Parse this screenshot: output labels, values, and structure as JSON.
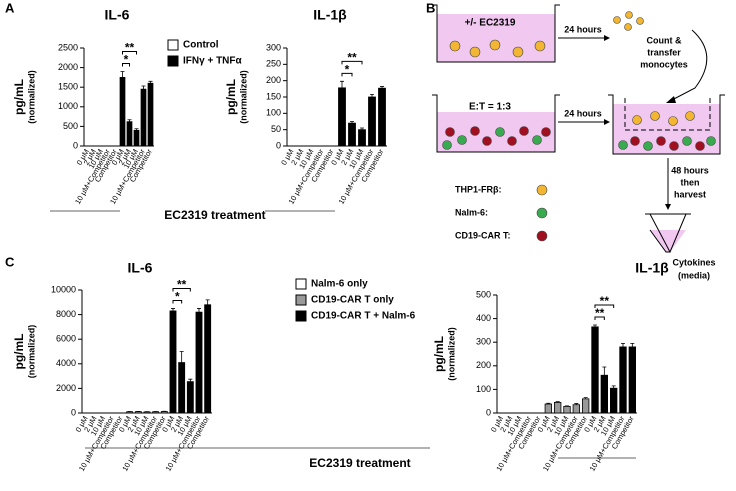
{
  "panel_labels": [
    "A",
    "B",
    "C"
  ],
  "shared_xlabels": [
    "EC2319 treatment",
    "EC2319 treatment"
  ],
  "chart_data": [
    {
      "type": "bar",
      "title": "IL-6",
      "ylabel": [
        "pg/mL",
        "(normalized)"
      ],
      "ylim": [
        0,
        2500
      ],
      "yticks": [
        0,
        500,
        1000,
        1500,
        2000,
        2500
      ],
      "categories": [
        "0 μM",
        "2 μM",
        "10 μM",
        "10 μM+Competitor",
        "Competitor"
      ],
      "legend": true,
      "series": [
        {
          "name": "Control",
          "color": "#ffffff",
          "values": [
            0,
            0,
            0,
            0,
            0
          ],
          "errors": [
            0,
            0,
            0,
            0,
            0
          ]
        },
        {
          "name": "IFNγ + TNFα",
          "color": "#000000",
          "values": [
            1750,
            620,
            400,
            1450,
            1600
          ],
          "errors": [
            150,
            50,
            40,
            80,
            50
          ]
        }
      ],
      "significance": [
        {
          "label": "*",
          "series": 1,
          "between": [
            0,
            1
          ]
        },
        {
          "label": "**",
          "series": 1,
          "between": [
            0,
            2
          ]
        }
      ]
    },
    {
      "type": "bar",
      "title": "IL-1β",
      "ylabel": [
        "pg/mL",
        "(normalized)"
      ],
      "ylim": [
        0,
        300
      ],
      "yticks": [
        0,
        50,
        100,
        150,
        200,
        250,
        300
      ],
      "categories": [
        "0 μM",
        "2 μM",
        "10 μM",
        "10 μM+Competitor",
        "Competitor"
      ],
      "legend": false,
      "series": [
        {
          "color": "#ffffff",
          "values": [
            0,
            0,
            0,
            0,
            0
          ],
          "errors": [
            0,
            0,
            0,
            0,
            0
          ]
        },
        {
          "color": "#000000",
          "values": [
            178,
            70,
            50,
            150,
            177
          ],
          "errors": [
            20,
            5,
            5,
            8,
            5
          ]
        }
      ],
      "significance": [
        {
          "label": "*",
          "series": 1,
          "between": [
            0,
            1
          ]
        },
        {
          "label": "**",
          "series": 1,
          "between": [
            0,
            2
          ]
        }
      ]
    },
    {
      "type": "bar",
      "title": "IL-6",
      "ylabel": [
        "pg/mL",
        "(normalized)"
      ],
      "ylim": [
        0,
        10000
      ],
      "yticks": [
        0,
        2000,
        4000,
        6000,
        8000,
        10000
      ],
      "categories": [
        "0 μM",
        "2 μM",
        "10 μM",
        "10 μM+Competitor",
        "Competitor"
      ],
      "legend": true,
      "series": [
        {
          "name": "Nalm-6 only",
          "color": "#ffffff",
          "values": [
            0,
            0,
            0,
            0,
            0
          ],
          "errors": [
            0,
            0,
            0,
            0,
            0
          ]
        },
        {
          "name": "CD19-CAR T only",
          "color": "#999999",
          "values": [
            100,
            110,
            90,
            100,
            120
          ],
          "errors": [
            20,
            20,
            20,
            20,
            20
          ]
        },
        {
          "name": "CD19-CAR T + Nalm-6",
          "color": "#000000",
          "values": [
            8300,
            4100,
            2550,
            8200,
            8800
          ],
          "errors": [
            200,
            900,
            200,
            300,
            400
          ]
        }
      ],
      "significance": [
        {
          "label": "*",
          "series": 2,
          "between": [
            0,
            1
          ]
        },
        {
          "label": "**",
          "series": 2,
          "between": [
            0,
            2
          ]
        }
      ]
    },
    {
      "type": "bar",
      "title": "IL-1β",
      "ylabel": [
        "pg/mL",
        "(normalized)"
      ],
      "ylim": [
        0,
        500
      ],
      "yticks": [
        0,
        100,
        200,
        300,
        400,
        500
      ],
      "categories": [
        "0 μM",
        "2 μM",
        "10 μM",
        "10 μM+Competitor",
        "Competitor"
      ],
      "legend": false,
      "series": [
        {
          "color": "#ffffff",
          "values": [
            0,
            0,
            0,
            0,
            0
          ],
          "errors": [
            0,
            0,
            0,
            0,
            0
          ]
        },
        {
          "color": "#999999",
          "values": [
            38,
            45,
            28,
            35,
            60
          ],
          "errors": [
            3,
            3,
            2,
            5,
            5
          ]
        },
        {
          "color": "#000000",
          "values": [
            365,
            160,
            105,
            280,
            280
          ],
          "errors": [
            8,
            35,
            10,
            15,
            15
          ]
        }
      ],
      "significance": [
        {
          "label": "**",
          "series": 2,
          "between": [
            0,
            1
          ]
        },
        {
          "label": "**",
          "series": 2,
          "between": [
            0,
            2
          ]
        }
      ]
    }
  ],
  "diagram": {
    "top_well": "+/- EC2319",
    "top_arrow": "24 hours",
    "transfer": [
      "Count &",
      "transfer",
      "monocytes"
    ],
    "bottom_well": "E:T = 1:3",
    "bottom_arrow": "24 hours",
    "harvest": [
      "48 hours",
      "then",
      "harvest"
    ],
    "legend": [
      "THP1-FRβ:",
      "Nalm-6:",
      "CD19-CAR T:"
    ],
    "tube": [
      "Cytokines",
      "(media)"
    ]
  }
}
